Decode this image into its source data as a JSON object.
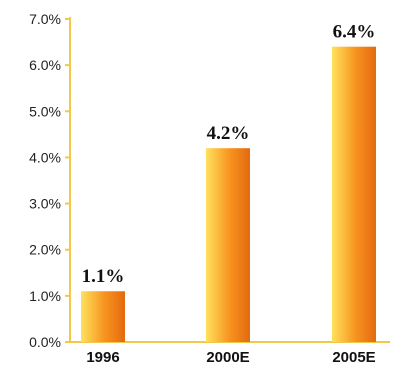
{
  "chart_data": {
    "type": "bar",
    "categories": [
      "1996",
      "2000E",
      "2005E"
    ],
    "values": [
      1.1,
      4.2,
      6.4
    ],
    "data_labels": [
      "1.1%",
      "4.2%",
      "6.4%"
    ],
    "y_tick_labels": [
      "0.0%",
      "1.0%",
      "2.0%",
      "3.0%",
      "4.0%",
      "5.0%",
      "6.0%",
      "7.0%"
    ],
    "ylim": [
      0,
      7
    ],
    "title": "",
    "xlabel": "",
    "ylabel": "",
    "grid": false,
    "legend": "none"
  },
  "colors": {
    "axis": "#F2C84B",
    "bar_light": "#FFE15C",
    "bar_mid": "#F7921E",
    "bar_dark": "#E36A10",
    "text": "#111111"
  }
}
